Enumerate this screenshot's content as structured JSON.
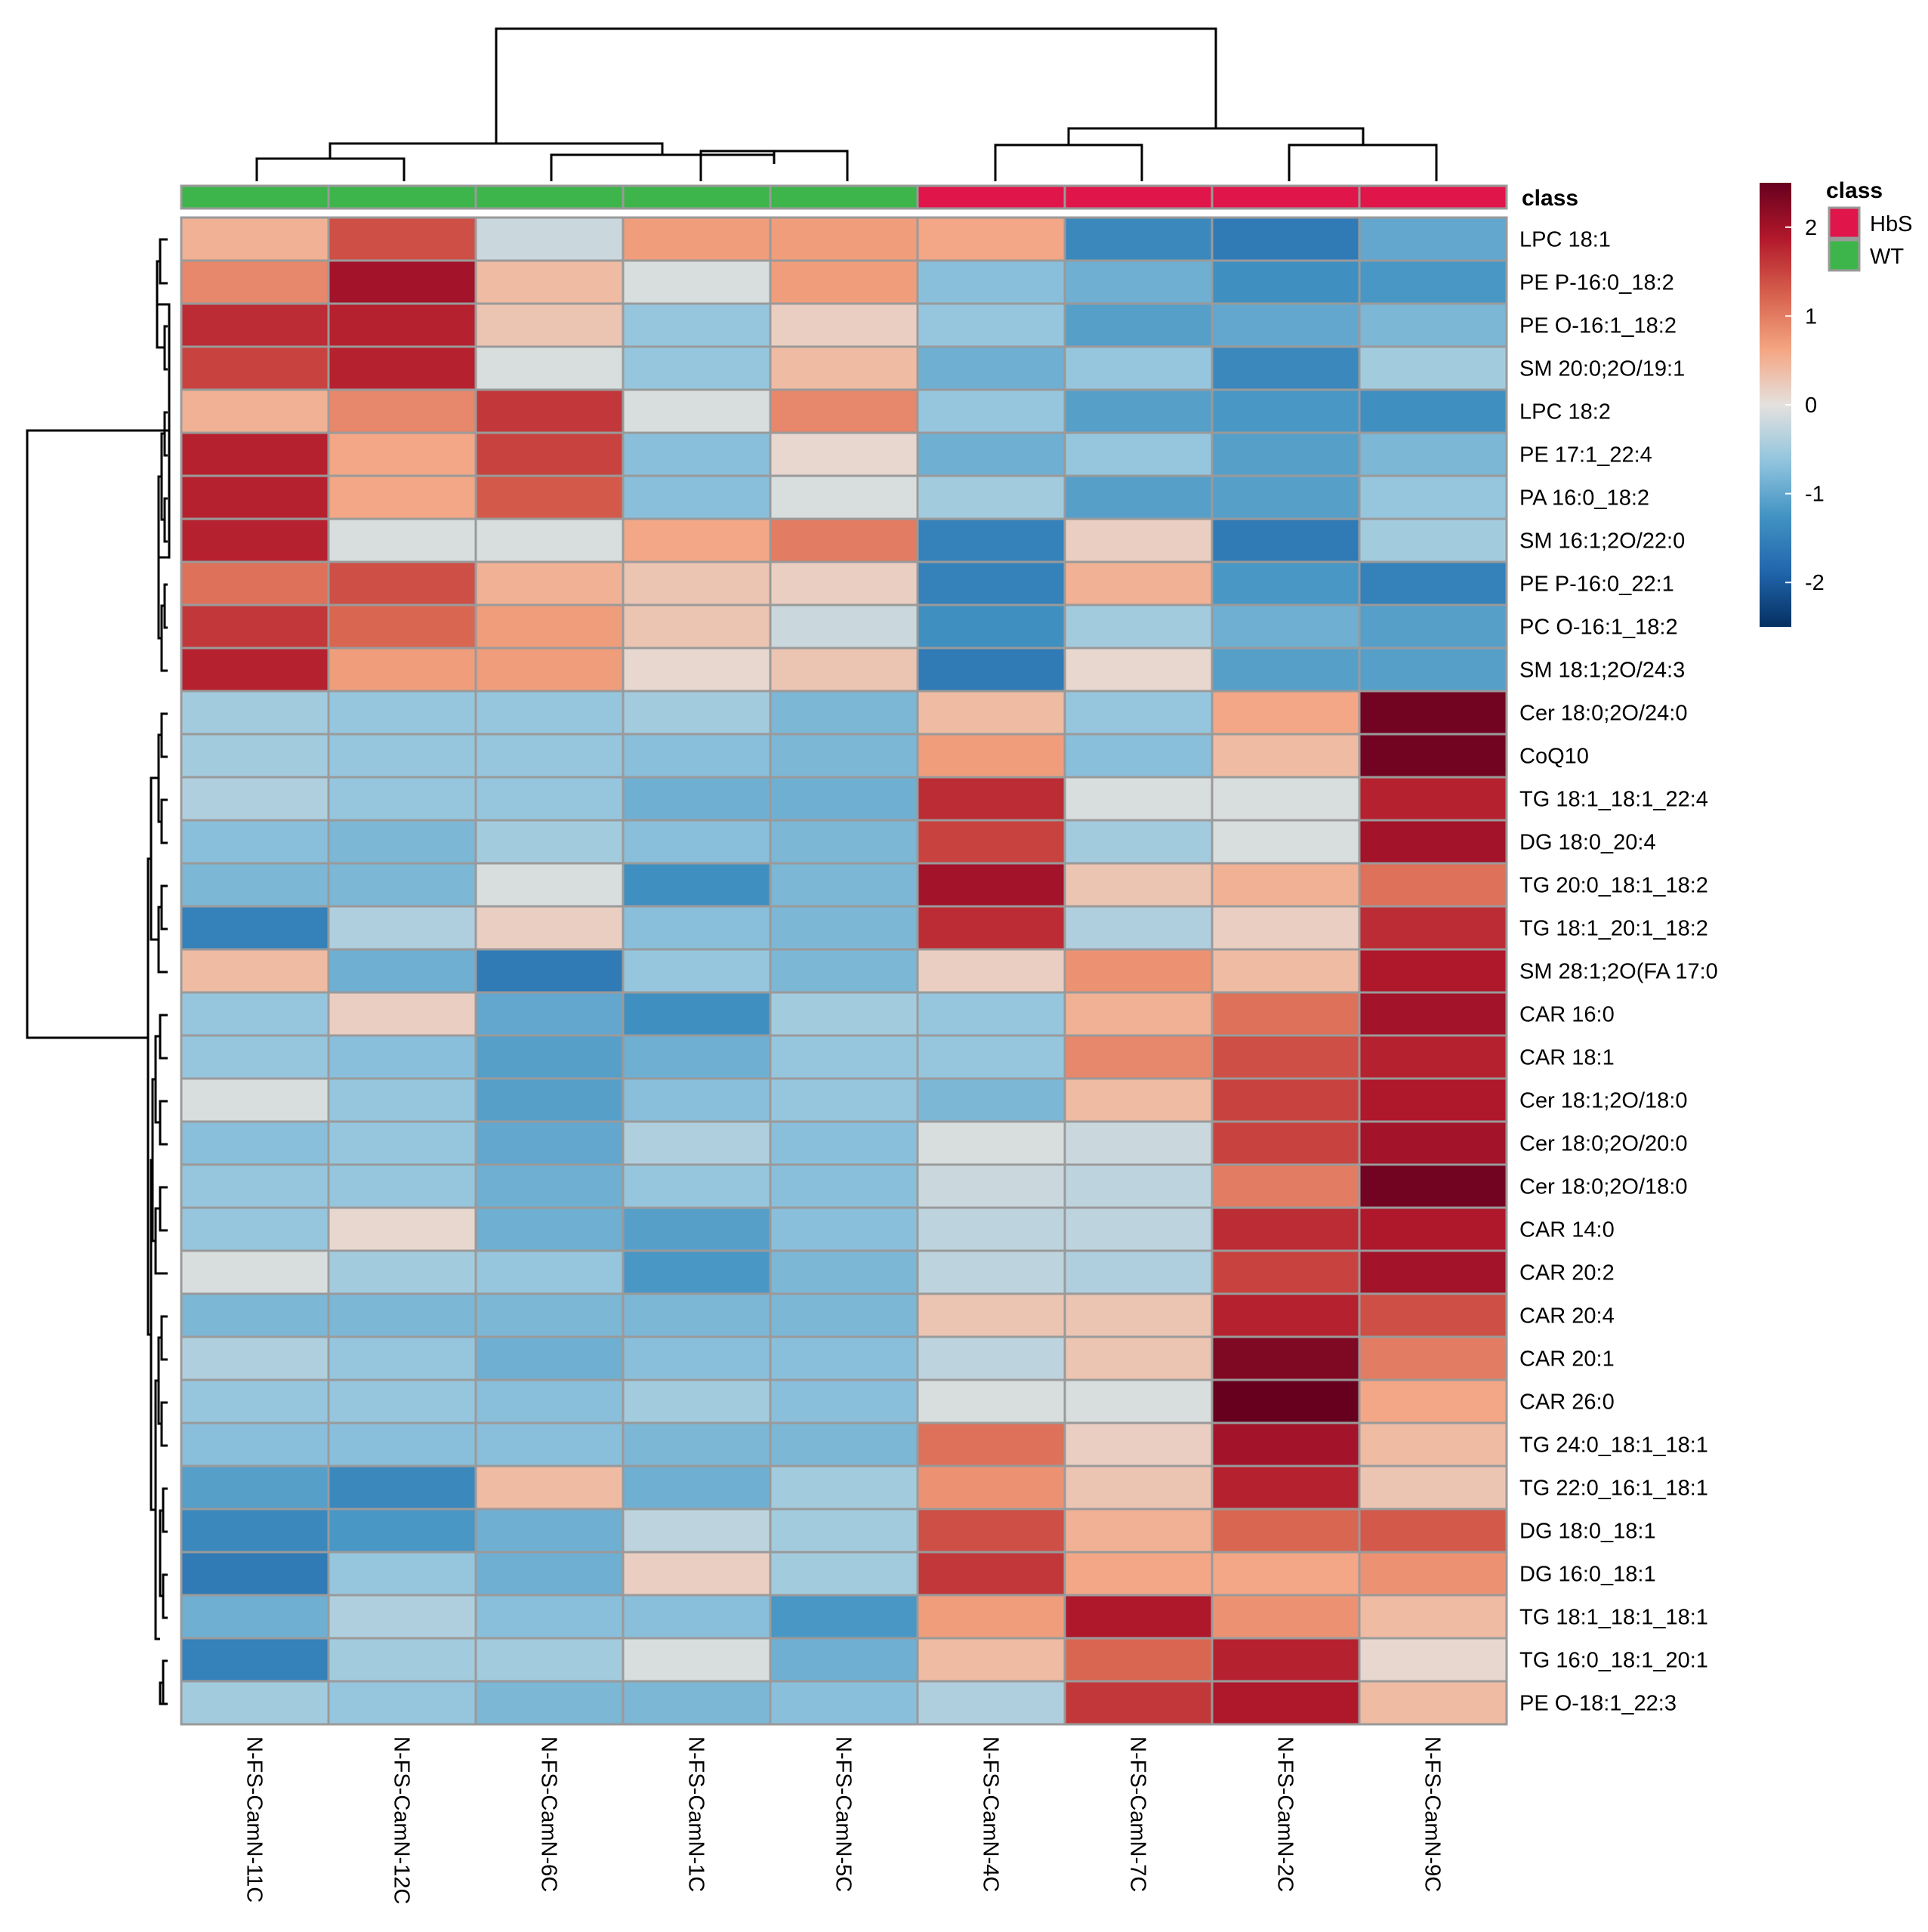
{
  "chart_data": {
    "type": "heatmap",
    "title": "",
    "class_annotation_label": "class",
    "columns": [
      "N-FS-CamN-11C",
      "N-FS-CamN-12C",
      "N-FS-CamN-6C",
      "N-FS-CamN-1C",
      "N-FS-CamN-5C",
      "N-FS-CamN-4C",
      "N-FS-CamN-7C",
      "N-FS-CamN-2C",
      "N-FS-CamN-9C"
    ],
    "column_classes": [
      "WT",
      "WT",
      "WT",
      "WT",
      "WT",
      "HbS",
      "HbS",
      "HbS",
      "HbS"
    ],
    "rows": [
      "LPC 18:1",
      "PE P-16:0_18:2",
      "PE O-16:1_18:2",
      "SM 20:0;2O/19:1",
      "LPC 18:2",
      "PE 17:1_22:4",
      "PA 16:0_18:2",
      "SM 16:1;2O/22:0",
      "PE P-16:0_22:1",
      "PC O-16:1_18:2",
      "SM 18:1;2O/24:3",
      "Cer 18:0;2O/24:0",
      "CoQ10",
      "TG 18:1_18:1_22:4",
      "DG 18:0_20:4",
      "TG 20:0_18:1_18:2",
      "TG 18:1_20:1_18:2",
      "SM 28:1;2O(FA 17:0",
      "CAR 16:0",
      "CAR 18:1",
      "Cer 18:1;2O/18:0",
      "Cer 18:0;2O/20:0",
      "Cer 18:0;2O/18:0",
      "CAR 14:0",
      "CAR 20:2",
      "CAR 20:4",
      "CAR 20:1",
      "CAR 26:0",
      "TG 24:0_18:1_18:1",
      "TG 22:0_16:1_18:1",
      "DG 18:0_18:1",
      "DG 16:0_18:1",
      "TG 18:1_18:1_18:1",
      "TG 16:0_18:1_20:1",
      "PE O-18:1_22:3"
    ],
    "values": [
      [
        0.5,
        1.4,
        -0.2,
        0.7,
        0.7,
        0.6,
        -1.4,
        -1.6,
        -1.0
      ],
      [
        0.9,
        2.0,
        0.4,
        -0.1,
        0.7,
        -0.7,
        -0.9,
        -1.3,
        -1.2
      ],
      [
        1.7,
        1.8,
        0.3,
        -0.6,
        0.2,
        -0.6,
        -1.1,
        -1.0,
        -0.8
      ],
      [
        1.5,
        1.8,
        -0.1,
        -0.6,
        0.4,
        -0.9,
        -0.6,
        -1.4,
        -0.5
      ],
      [
        0.5,
        0.9,
        1.6,
        -0.1,
        0.9,
        -0.6,
        -1.1,
        -1.2,
        -1.3
      ],
      [
        1.8,
        0.6,
        1.5,
        -0.7,
        0.1,
        -0.9,
        -0.6,
        -1.1,
        -0.8
      ],
      [
        1.8,
        0.6,
        1.3,
        -0.7,
        -0.1,
        -0.5,
        -1.1,
        -1.1,
        -0.6
      ],
      [
        1.8,
        -0.1,
        -0.1,
        0.6,
        1.0,
        -1.5,
        0.2,
        -1.6,
        -0.5
      ],
      [
        1.1,
        1.4,
        0.5,
        0.3,
        0.2,
        -1.5,
        0.5,
        -1.2,
        -1.5
      ],
      [
        1.6,
        1.2,
        0.7,
        0.3,
        -0.2,
        -1.3,
        -0.5,
        -0.9,
        -1.1
      ],
      [
        1.8,
        0.7,
        0.7,
        0.1,
        0.3,
        -1.6,
        0.1,
        -1.1,
        -1.1
      ],
      [
        -0.5,
        -0.6,
        -0.6,
        -0.5,
        -0.8,
        0.4,
        -0.6,
        0.6,
        2.4
      ],
      [
        -0.5,
        -0.6,
        -0.6,
        -0.7,
        -0.8,
        0.7,
        -0.7,
        0.4,
        2.4
      ],
      [
        -0.4,
        -0.6,
        -0.6,
        -0.9,
        -0.9,
        1.7,
        -0.1,
        -0.1,
        1.8
      ],
      [
        -0.7,
        -0.8,
        -0.5,
        -0.7,
        -0.8,
        1.5,
        -0.5,
        -0.1,
        2.0
      ],
      [
        -0.8,
        -0.8,
        -0.1,
        -1.3,
        -0.8,
        2.0,
        0.3,
        0.5,
        1.1
      ],
      [
        -1.5,
        -0.4,
        0.2,
        -0.7,
        -0.8,
        1.7,
        -0.4,
        0.2,
        1.7
      ],
      [
        0.4,
        -0.9,
        -1.6,
        -0.6,
        -0.8,
        0.2,
        0.8,
        0.4,
        1.9
      ],
      [
        -0.6,
        0.2,
        -1.0,
        -1.3,
        -0.5,
        -0.6,
        0.5,
        1.1,
        2.0
      ],
      [
        -0.6,
        -0.7,
        -1.1,
        -0.9,
        -0.6,
        -0.6,
        0.9,
        1.4,
        1.8
      ],
      [
        -0.1,
        -0.6,
        -1.1,
        -0.7,
        -0.6,
        -0.8,
        0.4,
        1.5,
        1.9
      ],
      [
        -0.7,
        -0.6,
        -1.0,
        -0.4,
        -0.7,
        -0.1,
        -0.2,
        1.5,
        2.0
      ],
      [
        -0.6,
        -0.6,
        -0.9,
        -0.6,
        -0.7,
        -0.2,
        -0.3,
        1.0,
        2.4
      ],
      [
        -0.6,
        0.1,
        -0.9,
        -1.1,
        -0.7,
        -0.3,
        -0.3,
        1.7,
        1.9
      ],
      [
        -0.1,
        -0.5,
        -0.6,
        -1.2,
        -0.8,
        -0.3,
        -0.4,
        1.5,
        2.0
      ],
      [
        -0.8,
        -0.8,
        -0.8,
        -0.8,
        -0.8,
        0.3,
        0.3,
        1.8,
        1.4
      ],
      [
        -0.4,
        -0.6,
        -0.9,
        -0.7,
        -0.7,
        -0.3,
        0.3,
        2.3,
        1.0
      ],
      [
        -0.6,
        -0.6,
        -0.7,
        -0.5,
        -0.7,
        -0.1,
        -0.1,
        2.5,
        0.6
      ],
      [
        -0.7,
        -0.7,
        -0.7,
        -0.8,
        -0.8,
        1.1,
        0.2,
        2.0,
        0.4
      ],
      [
        -1.1,
        -1.4,
        0.4,
        -0.9,
        -0.5,
        0.8,
        0.3,
        1.8,
        0.3
      ],
      [
        -1.4,
        -1.2,
        -0.9,
        -0.3,
        -0.5,
        1.4,
        0.5,
        1.2,
        1.3
      ],
      [
        -1.6,
        -0.6,
        -0.9,
        0.2,
        -0.5,
        1.6,
        0.6,
        0.6,
        0.8
      ],
      [
        -0.9,
        -0.4,
        -0.7,
        -0.7,
        -1.2,
        0.7,
        1.9,
        0.8,
        0.4
      ],
      [
        -1.5,
        -0.5,
        -0.5,
        -0.1,
        -0.9,
        0.4,
        1.2,
        1.8,
        0.1
      ],
      [
        -0.5,
        -0.6,
        -0.8,
        -0.8,
        -0.7,
        -0.4,
        1.6,
        1.9,
        0.4
      ]
    ],
    "color_scale": {
      "range": [
        -2.5,
        2.5
      ],
      "ticks": [
        2,
        1,
        0,
        -1,
        -2
      ],
      "tick_labels": [
        "2",
        "1",
        "0",
        "-1",
        "-2"
      ],
      "stops": [
        {
          "v": -2.5,
          "color": "#053061"
        },
        {
          "v": -1.875,
          "color": "#2166ac"
        },
        {
          "v": -1.25,
          "color": "#4393c3"
        },
        {
          "v": -0.625,
          "color": "#92c5de"
        },
        {
          "v": 0,
          "color": "#e5e1de"
        },
        {
          "v": 0.625,
          "color": "#f4a582"
        },
        {
          "v": 1.25,
          "color": "#d6604d"
        },
        {
          "v": 1.875,
          "color": "#b2182b"
        },
        {
          "v": 2.5,
          "color": "#67001f"
        }
      ]
    },
    "legend": {
      "title": "class",
      "entries": [
        {
          "label": "HbS",
          "color": "#e0154a"
        },
        {
          "label": "WT",
          "color": "#3db54a"
        }
      ]
    },
    "class_colors": {
      "HbS": "#e0154a",
      "WT": "#3db54a"
    }
  }
}
